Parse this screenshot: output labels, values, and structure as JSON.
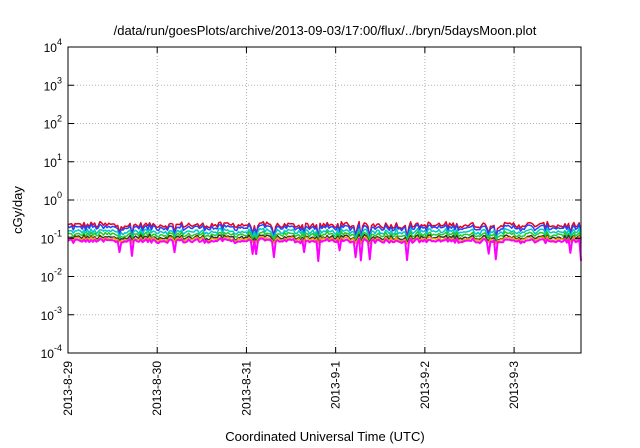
{
  "chart_data": {
    "type": "line",
    "title": "/data/run/goesPlots/archive/2013-09-03/17:00/flux/../bryn/5daysMoon.plot",
    "xlabel": "Coordinated Universal Time (UTC)",
    "ylabel": "cGy/day",
    "y_scale": "log",
    "ylim": [
      0.0001,
      10000
    ],
    "xlim": [
      "2013-08-29 00:00",
      "2013-09-03 18:00"
    ],
    "grid": true,
    "legend": "none",
    "x_ticks": [
      "2013-8-29",
      "2013-8-30",
      "2013-8-31",
      "2013-9-1",
      "2013-9-2",
      "2013-9-3"
    ],
    "y_ticks": [
      {
        "value": 0.0001,
        "base": "10",
        "exp": "-4"
      },
      {
        "value": 0.001,
        "base": "10",
        "exp": "-3"
      },
      {
        "value": 0.01,
        "base": "10",
        "exp": "-2"
      },
      {
        "value": 0.1,
        "base": "10",
        "exp": "-1"
      },
      {
        "value": 1,
        "base": "10",
        "exp": "0"
      },
      {
        "value": 10,
        "base": "10",
        "exp": "1"
      },
      {
        "value": 100,
        "base": "10",
        "exp": "2"
      },
      {
        "value": 1000,
        "base": "10",
        "exp": "3"
      },
      {
        "value": 10000,
        "base": "10",
        "exp": "4"
      }
    ],
    "series": [
      {
        "color": "#e8001c",
        "base": 0.22,
        "dip": 0.1
      },
      {
        "color": "#2244ff",
        "base": 0.19,
        "dip": 0.09
      },
      {
        "color": "#00c8c8",
        "base": 0.15,
        "dip": 0.085
      },
      {
        "color": "#22cc22",
        "base": 0.125,
        "dip": 0.08
      },
      {
        "color": "#333333",
        "base": 0.105,
        "dip": 0.075
      },
      {
        "color": "#f0a000",
        "base": 0.095,
        "dip": 0.07
      },
      {
        "color": "#ff00ff",
        "base": 0.085,
        "dip": 0.025
      }
    ]
  }
}
